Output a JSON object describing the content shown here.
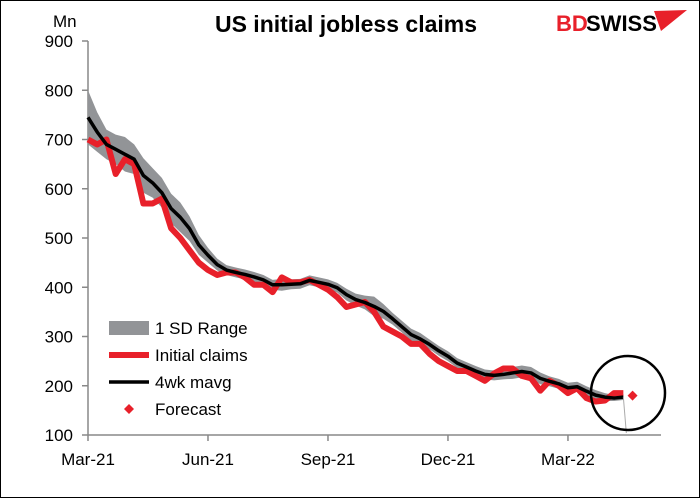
{
  "brand": {
    "logo_text_1": "BD",
    "logo_text_2": "SWISS",
    "red": "#e8202a"
  },
  "chart_data": {
    "type": "line",
    "title": "US initial jobless claims",
    "ylabel": "Mn",
    "ylim": [
      100,
      900
    ],
    "yticks": [
      100,
      200,
      300,
      400,
      500,
      600,
      700,
      800,
      900
    ],
    "xticks": [
      {
        "date": "2021-03-06",
        "label": "Mar-21"
      },
      {
        "date": "2021-06-05",
        "label": "Jun-21"
      },
      {
        "date": "2021-09-04",
        "label": "Sep-21"
      },
      {
        "date": "2021-12-04",
        "label": "Dec-21"
      },
      {
        "date": "2022-03-05",
        "label": "Mar-22"
      }
    ],
    "x": [
      "2021-03-06",
      "2021-03-13",
      "2021-03-20",
      "2021-03-27",
      "2021-04-03",
      "2021-04-10",
      "2021-04-17",
      "2021-04-24",
      "2021-05-01",
      "2021-05-08",
      "2021-05-15",
      "2021-05-22",
      "2021-05-29",
      "2021-06-05",
      "2021-06-12",
      "2021-06-19",
      "2021-06-26",
      "2021-07-03",
      "2021-07-10",
      "2021-07-17",
      "2021-07-24",
      "2021-07-31",
      "2021-08-07",
      "2021-08-14",
      "2021-08-21",
      "2021-08-28",
      "2021-09-04",
      "2021-09-11",
      "2021-09-18",
      "2021-09-25",
      "2021-10-02",
      "2021-10-09",
      "2021-10-16",
      "2021-10-23",
      "2021-10-30",
      "2021-11-06",
      "2021-11-13",
      "2021-11-20",
      "2021-11-27",
      "2021-12-04",
      "2021-12-11",
      "2021-12-18",
      "2021-12-25",
      "2022-01-01",
      "2022-01-08",
      "2022-01-15",
      "2022-01-22",
      "2022-01-29",
      "2022-02-05",
      "2022-02-12",
      "2022-02-19",
      "2022-02-26",
      "2022-03-05",
      "2022-03-12",
      "2022-03-19",
      "2022-03-26",
      "2022-04-02",
      "2022-04-09",
      "2022-04-16"
    ],
    "series": [
      {
        "name": "1 SD Range",
        "type": "band",
        "color": "#929497",
        "sd": [
          55,
          40,
          30,
          30,
          35,
          30,
          35,
          30,
          30,
          30,
          30,
          25,
          20,
          15,
          12,
          10,
          10,
          10,
          10,
          10,
          10,
          12,
          10,
          10,
          10,
          10,
          10,
          10,
          12,
          12,
          14,
          20,
          15,
          12,
          12,
          12,
          12,
          10,
          10,
          10,
          10,
          10,
          10,
          10,
          10,
          10,
          12,
          12,
          12,
          12,
          10,
          10,
          10,
          10,
          10,
          10,
          8,
          6,
          6
        ]
      },
      {
        "name": "Initial claims",
        "type": "line",
        "color": "#e8202a",
        "values": [
          700,
          690,
          700,
          630,
          660,
          650,
          570,
          570,
          580,
          520,
          500,
          475,
          450,
          435,
          425,
          430,
          430,
          420,
          405,
          405,
          390,
          420,
          410,
          410,
          415,
          405,
          395,
          380,
          360,
          365,
          370,
          350,
          320,
          310,
          300,
          285,
          285,
          265,
          250,
          240,
          230,
          230,
          220,
          210,
          225,
          235,
          235,
          220,
          215,
          190,
          210,
          200,
          185,
          195,
          175,
          168,
          170,
          185,
          185
        ]
      },
      {
        "name": "4wk mavg",
        "type": "line",
        "color": "#000000",
        "values": [
          745,
          715,
          690,
          680,
          670,
          660,
          627,
          612,
          592,
          560,
          542,
          519,
          486,
          465,
          446,
          435,
          430,
          426,
          421,
          415,
          405,
          405,
          406,
          407,
          414,
          410,
          406,
          399,
          385,
          375,
          369,
          361,
          351,
          336,
          320,
          304,
          295,
          284,
          271,
          260,
          246,
          238,
          230,
          223,
          221,
          223,
          226,
          229,
          226,
          215,
          209,
          204,
          196,
          198,
          189,
          181,
          177,
          175,
          177
        ]
      },
      {
        "name": "Forecast",
        "type": "scatter",
        "color": "#e8202a",
        "points": [
          {
            "x": "2022-04-23",
            "y": 180
          }
        ]
      }
    ],
    "legend": "bottom-left",
    "annotation": "circle around latest data and forecast",
    "grid": false
  }
}
